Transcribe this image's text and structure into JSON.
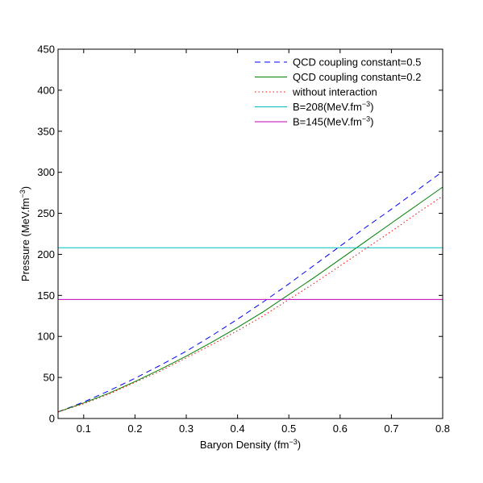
{
  "chart_data": {
    "type": "line",
    "title": "",
    "xlabel": "Baryon Density (fm",
    "xlabel_sup": "−3",
    "xlabel_tail": ")",
    "ylabel": "Pressure (MeV.fm",
    "ylabel_sup": "−3",
    "ylabel_tail": ")",
    "xlim": [
      0.05,
      0.8
    ],
    "ylim": [
      0,
      450
    ],
    "xticks": [
      0.1,
      0.2,
      0.3,
      0.4,
      0.5,
      0.6,
      0.7,
      0.8
    ],
    "xtick_labels": [
      "0.1",
      "0.2",
      "0.3",
      "0.4",
      "0.5",
      "0.6",
      "0.7",
      "0.8"
    ],
    "yticks": [
      0,
      50,
      100,
      150,
      200,
      250,
      300,
      350,
      400,
      450
    ],
    "ytick_labels": [
      "0",
      "50",
      "100",
      "150",
      "200",
      "250",
      "300",
      "350",
      "400",
      "450"
    ],
    "grid": false,
    "legend_position": "top-right",
    "x": [
      0.05,
      0.1,
      0.15,
      0.2,
      0.25,
      0.3,
      0.35,
      0.4,
      0.45,
      0.5,
      0.55,
      0.6,
      0.65,
      0.7,
      0.75,
      0.8
    ],
    "series": [
      {
        "name": "QCD coupling constant=0.5",
        "color": "#0000ff",
        "style": "dashed",
        "values": [
          8,
          20,
          34,
          49,
          65,
          82,
          101,
          121,
          142,
          164,
          187,
          210,
          233,
          255,
          278,
          301
        ]
      },
      {
        "name": "QCD coupling constant=0.2",
        "color": "#008000",
        "style": "solid",
        "values": [
          8,
          19,
          31,
          45,
          60,
          76,
          93,
          111,
          130,
          151,
          172,
          194,
          216,
          238,
          260,
          282
        ]
      },
      {
        "name": "without interaction",
        "color": "#ff0000",
        "style": "dotted",
        "values": [
          8,
          18,
          30,
          44,
          58,
          74,
          90,
          107,
          125,
          145,
          165,
          186,
          207,
          228,
          250,
          271
        ]
      },
      {
        "name": "B=208(MeV.fm",
        "name_sup": "−3",
        "name_tail": ")",
        "color": "#00bfbf",
        "style": "solid",
        "constant": 208
      },
      {
        "name": "B=145(MeV.fm",
        "name_sup": "−3",
        "name_tail": ")",
        "color": "#bf00bf",
        "style": "solid",
        "constant": 145
      }
    ]
  }
}
